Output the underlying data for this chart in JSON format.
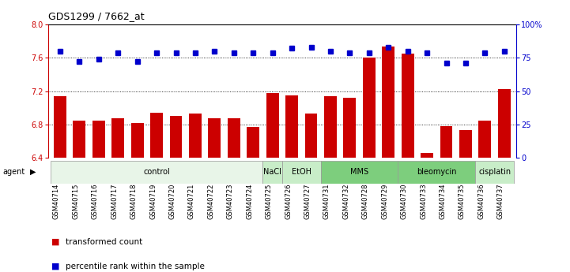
{
  "title": "GDS1299 / 7662_at",
  "samples": [
    "GSM40714",
    "GSM40715",
    "GSM40716",
    "GSM40717",
    "GSM40718",
    "GSM40719",
    "GSM40720",
    "GSM40721",
    "GSM40722",
    "GSM40723",
    "GSM40724",
    "GSM40725",
    "GSM40726",
    "GSM40727",
    "GSM40731",
    "GSM40732",
    "GSM40728",
    "GSM40729",
    "GSM40730",
    "GSM40733",
    "GSM40734",
    "GSM40735",
    "GSM40736",
    "GSM40737"
  ],
  "bar_values": [
    7.14,
    6.85,
    6.85,
    6.87,
    6.82,
    6.94,
    6.9,
    6.93,
    6.87,
    6.87,
    6.77,
    7.18,
    7.15,
    6.93,
    7.14,
    7.12,
    7.6,
    7.74,
    7.65,
    6.46,
    6.78,
    6.73,
    6.85,
    7.22
  ],
  "dot_values": [
    80,
    72,
    74,
    79,
    72,
    79,
    79,
    79,
    80,
    79,
    79,
    79,
    82,
    83,
    80,
    79,
    79,
    83,
    80,
    79,
    71,
    71,
    79,
    80
  ],
  "bar_color": "#cc0000",
  "dot_color": "#0000cc",
  "ylim": [
    6.4,
    8.0
  ],
  "y2lim": [
    0,
    100
  ],
  "yticks": [
    6.4,
    6.8,
    7.2,
    7.6,
    8.0
  ],
  "y2ticks": [
    0,
    25,
    50,
    75,
    100
  ],
  "y2ticklabels": [
    "0",
    "25",
    "50",
    "75",
    "100%"
  ],
  "gridlines": [
    6.8,
    7.2,
    7.6
  ],
  "agent_groups": [
    {
      "label": "control",
      "start": 0,
      "end": 10,
      "color": "#e8f5e8"
    },
    {
      "label": "NaCl",
      "start": 11,
      "end": 11,
      "color": "#c8edc8"
    },
    {
      "label": "EtOH",
      "start": 12,
      "end": 13,
      "color": "#c8edc8"
    },
    {
      "label": "MMS",
      "start": 14,
      "end": 17,
      "color": "#7dce7d"
    },
    {
      "label": "bleomycin",
      "start": 18,
      "end": 21,
      "color": "#7dce7d"
    },
    {
      "label": "cisplatin",
      "start": 22,
      "end": 23,
      "color": "#c8edc8"
    }
  ],
  "legend_items": [
    {
      "label": "transformed count",
      "color": "#cc0000"
    },
    {
      "label": "percentile rank within the sample",
      "color": "#0000cc"
    }
  ],
  "bg_color": "#ffffff",
  "axes_bg": "#ffffff",
  "title_fontsize": 9,
  "tick_fontsize": 7,
  "bar_width": 0.65
}
